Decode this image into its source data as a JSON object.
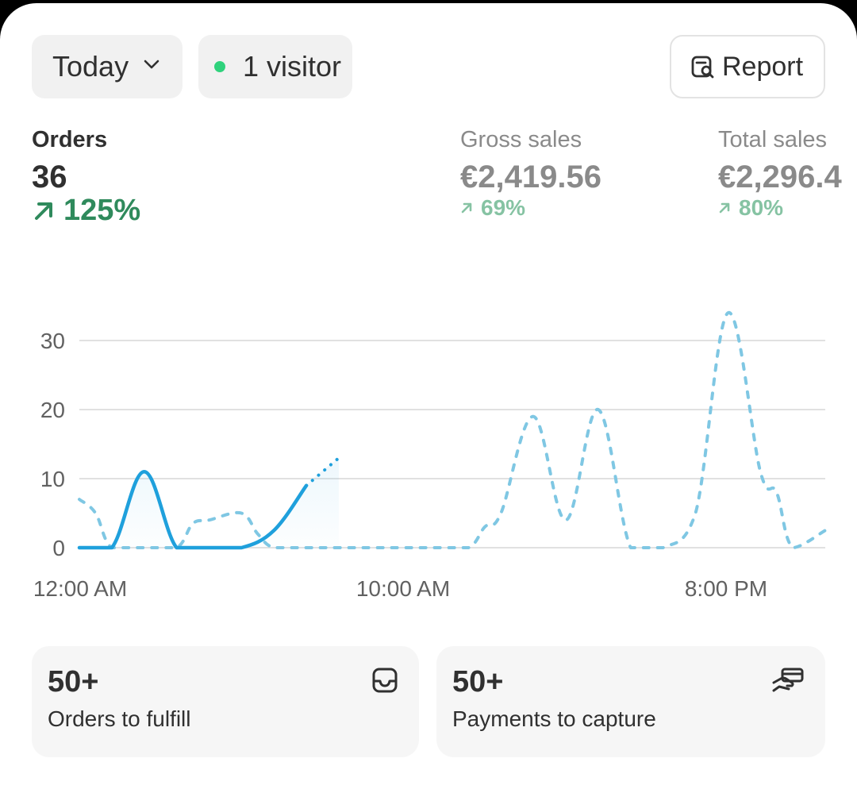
{
  "toolbar": {
    "date_range": "Today",
    "visitors": "1 visitor",
    "visitor_dot_color": "#2fd27c",
    "report_label": "Report"
  },
  "metrics": [
    {
      "label": "Orders",
      "value": "36",
      "delta": "125%",
      "direction": "up"
    },
    {
      "label": "Gross sales",
      "value": "€2,419.56",
      "delta": "69%",
      "direction": "up"
    },
    {
      "label": "Total sales",
      "value": "€2,296.4",
      "delta": "80%",
      "direction": "up"
    }
  ],
  "chart_data": {
    "type": "line",
    "yticks": [
      "30",
      "20",
      "10",
      "0"
    ],
    "xticks": [
      "12:00 AM",
      "10:00 AM",
      "8:00 PM"
    ],
    "ylim": [
      0,
      35
    ],
    "series": [
      {
        "style": "solid",
        "color": "#1fa0dc",
        "points": [
          [
            0,
            0
          ],
          [
            1,
            0
          ],
          [
            2,
            11
          ],
          [
            3,
            0
          ],
          [
            4,
            0
          ],
          [
            5,
            0
          ],
          [
            6,
            2.5
          ],
          [
            7,
            9
          ]
        ]
      },
      {
        "style": "dotted",
        "color": "#1fa0dc",
        "points": [
          [
            7,
            9
          ],
          [
            8,
            13
          ]
        ]
      },
      {
        "style": "dashed",
        "color": "#7fc7e3",
        "points": [
          [
            0,
            7
          ],
          [
            0.5,
            5
          ],
          [
            1,
            0
          ],
          [
            2,
            0
          ],
          [
            3,
            0
          ],
          [
            3.5,
            3.5
          ],
          [
            4,
            4
          ],
          [
            5,
            5
          ],
          [
            5.5,
            2
          ],
          [
            6,
            0
          ],
          [
            7,
            0
          ],
          [
            8,
            0
          ],
          [
            9,
            0
          ],
          [
            10,
            0
          ],
          [
            11,
            0
          ],
          [
            12,
            0
          ],
          [
            12.5,
            3
          ],
          [
            13,
            5
          ],
          [
            14,
            19
          ],
          [
            15,
            4
          ],
          [
            16,
            20
          ],
          [
            17,
            0
          ],
          [
            18,
            0
          ],
          [
            19,
            5
          ],
          [
            20,
            34
          ],
          [
            21,
            11
          ],
          [
            21.5,
            8
          ],
          [
            22,
            0
          ],
          [
            23,
            2.5
          ]
        ]
      }
    ]
  },
  "tiles": [
    {
      "value": "50+",
      "label": "Orders to fulfill",
      "icon": "inbox-icon"
    },
    {
      "value": "50+",
      "label": "Payments to capture",
      "icon": "hand-card-icon"
    }
  ]
}
